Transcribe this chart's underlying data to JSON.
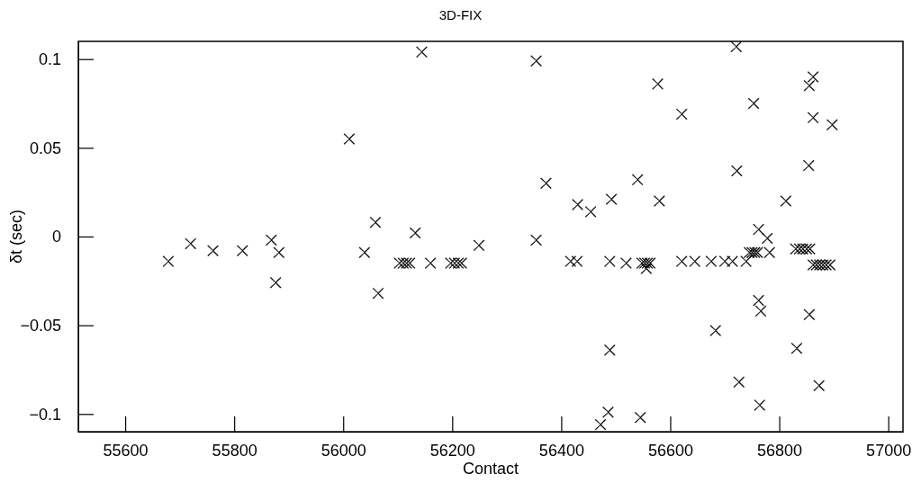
{
  "chart_data": {
    "type": "scatter",
    "title": "3D-FIX",
    "xlabel": "Contact",
    "ylabel": "δt (sec)",
    "marker": "cross",
    "grid": false,
    "xlim": [
      55514,
      57027
    ],
    "ylim": [
      -0.11,
      0.11
    ],
    "xticks": [
      55600,
      55800,
      56000,
      56200,
      56400,
      56600,
      56800,
      57000
    ],
    "yticks": [
      {
        "value": -0.1,
        "label": "−0.1"
      },
      {
        "value": -0.05,
        "label": "−0.05"
      },
      0,
      0.05,
      0.1
    ],
    "series": [
      {
        "color": "#000000",
        "x": [
          55679,
          55720,
          55761,
          55815,
          55868,
          55882,
          55876,
          56011,
          56039,
          56059,
          56064,
          56144,
          56132,
          56103,
          56110,
          56116,
          56122,
          56160,
          56197,
          56204,
          56211,
          56217,
          56249,
          56354,
          56354,
          56372,
          56417,
          56429,
          56430,
          56454,
          56489,
          56492,
          56489,
          56486,
          56472,
          56519,
          56540,
          56545,
          56548,
          56553,
          56558,
          56563,
          56556,
          56577,
          56580,
          56621,
          56621,
          56645,
          56675,
          56700,
          56714,
          56739,
          56683,
          56721,
          56722,
          56726,
          56753,
          56745,
          56750,
          56755,
          56760,
          56762,
          56778,
          56782,
          56762,
          56766,
          56764,
          56812,
          56832,
          56830,
          56837,
          56843,
          56850,
          56856,
          56854,
          56855,
          56862,
          56862,
          56855,
          56862,
          56868,
          56874,
          56880,
          56886,
          56893,
          56897,
          56873
        ],
        "values": [
          -0.014,
          -0.004,
          -0.008,
          -0.008,
          -0.002,
          -0.009,
          -0.026,
          0.055,
          -0.009,
          0.008,
          -0.032,
          0.104,
          0.002,
          -0.015,
          -0.015,
          -0.015,
          -0.015,
          -0.015,
          -0.015,
          -0.015,
          -0.015,
          -0.015,
          -0.005,
          0.099,
          -0.002,
          0.03,
          -0.014,
          -0.014,
          0.018,
          0.014,
          -0.014,
          0.021,
          -0.064,
          -0.099,
          -0.106,
          -0.015,
          0.032,
          -0.102,
          -0.015,
          -0.015,
          -0.015,
          -0.015,
          -0.018,
          0.086,
          0.02,
          0.069,
          -0.014,
          -0.014,
          -0.014,
          -0.014,
          -0.014,
          -0.014,
          -0.053,
          0.107,
          0.037,
          -0.082,
          0.075,
          -0.009,
          -0.009,
          -0.009,
          -0.009,
          0.004,
          -0.001,
          -0.009,
          -0.036,
          -0.042,
          -0.095,
          0.02,
          -0.063,
          -0.007,
          -0.007,
          -0.007,
          -0.007,
          -0.007,
          0.04,
          0.085,
          0.09,
          0.067,
          -0.044,
          -0.016,
          -0.016,
          -0.016,
          -0.016,
          -0.016,
          -0.016,
          0.063,
          -0.084
        ]
      }
    ]
  }
}
